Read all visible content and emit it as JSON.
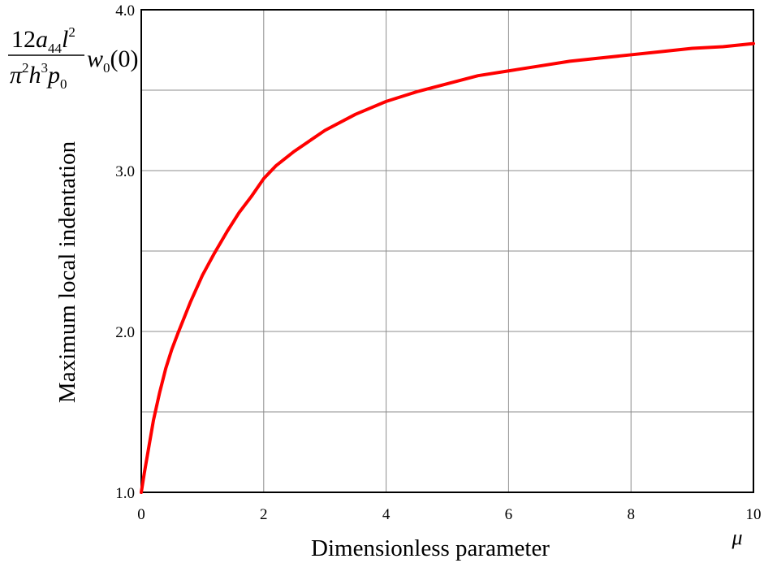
{
  "chart_data": {
    "type": "line",
    "title": "",
    "xlabel": "Dimensionless parameter",
    "xlabel_symbol": "μ",
    "ylabel": "Maximum local indentation",
    "ylabel_formula": {
      "num_coef": "12",
      "num_a": "a",
      "num_a_sub": "44",
      "num_l": "l",
      "num_l_sup": "2",
      "den_pi": "π",
      "den_pi_sup": "2",
      "den_h": "h",
      "den_h_sup": "3",
      "den_p": "p",
      "den_p_sub": "0",
      "rhs_w": "w",
      "rhs_w_sub": "0",
      "rhs_arg": "(0)"
    },
    "xlim": [
      0,
      10
    ],
    "ylim": [
      1.0,
      4.0
    ],
    "x_ticks": [
      0,
      2,
      4,
      6,
      8,
      10
    ],
    "x_tick_labels": [
      "0",
      "2",
      "4",
      "6",
      "8",
      "10"
    ],
    "y_ticks": [
      1.0,
      2.0,
      3.0,
      4.0
    ],
    "y_tick_labels": [
      "1.0",
      "2.0",
      "3.0",
      "4.0"
    ],
    "grid": true,
    "series_color": "#ff0000",
    "series": [
      {
        "name": "",
        "x": [
          0,
          0.05,
          0.1,
          0.2,
          0.3,
          0.4,
          0.5,
          0.6,
          0.8,
          1.0,
          1.2,
          1.4,
          1.6,
          1.8,
          2.0,
          2.2,
          2.5,
          3.0,
          3.5,
          4.0,
          4.5,
          5.0,
          5.5,
          6.0,
          6.5,
          7.0,
          7.5,
          8.0,
          8.5,
          9.0,
          9.5,
          10.0
        ],
        "y": [
          1.0,
          1.12,
          1.23,
          1.45,
          1.62,
          1.77,
          1.89,
          1.99,
          2.18,
          2.35,
          2.49,
          2.62,
          2.74,
          2.84,
          2.95,
          3.03,
          3.12,
          3.25,
          3.35,
          3.43,
          3.49,
          3.54,
          3.59,
          3.62,
          3.65,
          3.68,
          3.7,
          3.72,
          3.74,
          3.76,
          3.77,
          3.79
        ]
      }
    ]
  }
}
